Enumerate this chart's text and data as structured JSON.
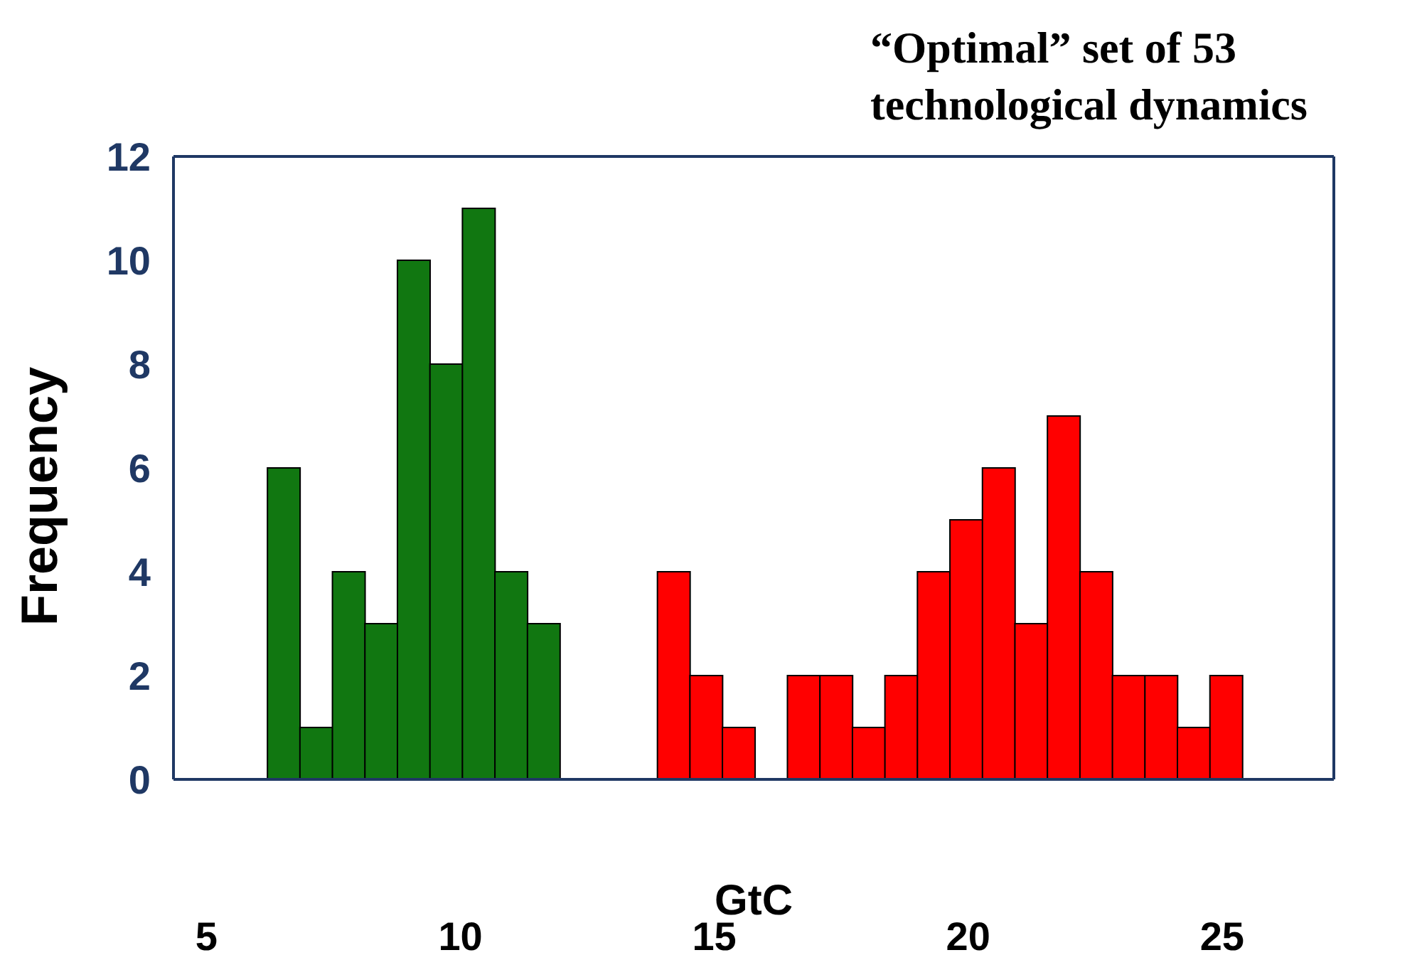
{
  "chart_data": {
    "type": "histogram",
    "title": "“Optimal” set of 53 technological dynamics",
    "xlabel": "GtC",
    "ylabel": "Frequency",
    "bins": [
      6.2,
      6.84,
      7.48,
      8.12,
      8.76,
      9.4,
      10.04,
      10.68,
      11.32,
      11.96,
      12.6,
      13.24,
      13.88,
      14.52,
      15.16,
      15.8,
      16.44,
      17.08,
      17.72,
      18.36,
      19.0,
      19.64,
      20.28,
      20.92,
      21.56,
      22.2,
      22.84,
      23.48,
      24.12,
      24.76,
      25.4
    ],
    "values": [
      6,
      1,
      4,
      3,
      10,
      8,
      11,
      4,
      3,
      0,
      0,
      0,
      4,
      2,
      1,
      0,
      2,
      2,
      1,
      2,
      4,
      5,
      6,
      3,
      7,
      4,
      2,
      2,
      1,
      2
    ],
    "colors": [
      "#117711",
      "#117711",
      "#117711",
      "#117711",
      "#117711",
      "#117711",
      "#117711",
      "#117711",
      "#117711",
      "#117711",
      "#117711",
      "#117711",
      "#ff0000",
      "#ff0000",
      "#ff0000",
      "#ff0000",
      "#ff0000",
      "#ff0000",
      "#ff0000",
      "#ff0000",
      "#ff0000",
      "#ff0000",
      "#ff0000",
      "#ff0000",
      "#ff0000",
      "#ff0000",
      "#ff0000",
      "#ff0000",
      "#ff0000",
      "#ff0000"
    ],
    "xlim": [
      4.35,
      27.2
    ],
    "xticks": [
      5,
      10,
      15,
      20,
      25
    ],
    "ylim": [
      0,
      12
    ],
    "yticks": [
      0,
      2,
      4,
      6,
      8,
      10,
      12
    ],
    "grid": false
  }
}
